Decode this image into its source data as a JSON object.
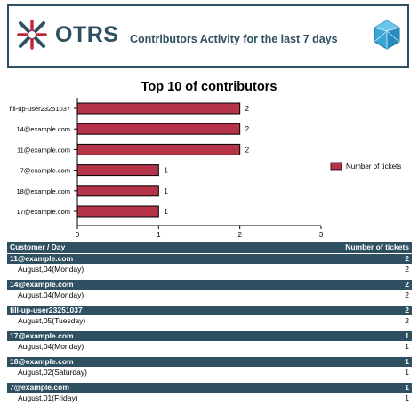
{
  "header": {
    "logo_text": "OTRS",
    "title": "Contributors Activity for the last 7 days"
  },
  "chart_data": {
    "type": "bar",
    "orientation": "horizontal",
    "title": "Top 10 of contributors",
    "categories": [
      "fill-up-user23251037",
      "14@example.com",
      "11@example.com",
      "7@example.com",
      "18@example.com",
      "17@example.com"
    ],
    "series": [
      {
        "name": "Number of tickets",
        "values": [
          2,
          2,
          2,
          1,
          1,
          1
        ],
        "color": "#b5344a"
      }
    ],
    "xlim": [
      0,
      3
    ],
    "xticks": [
      "0",
      "1",
      "2",
      "3"
    ],
    "legend_position": "right"
  },
  "table": {
    "header": {
      "left": "Customer / Day",
      "right": "Number of tickets"
    },
    "groups": [
      {
        "name": "11@example.com",
        "total": "2",
        "rows": [
          {
            "day": "August,04(Monday)",
            "count": "2"
          }
        ]
      },
      {
        "name": "14@example.com",
        "total": "2",
        "rows": [
          {
            "day": "August,04(Monday)",
            "count": "2"
          }
        ]
      },
      {
        "name": "fill-up-user23251037",
        "total": "2",
        "rows": [
          {
            "day": "August,05(Tuesday)",
            "count": "2"
          }
        ]
      },
      {
        "name": "17@example.com",
        "total": "1",
        "rows": [
          {
            "day": "August,04(Monday)",
            "count": "1"
          }
        ]
      },
      {
        "name": "18@example.com",
        "total": "1",
        "rows": [
          {
            "day": "August,02(Saturday)",
            "count": "1"
          }
        ]
      },
      {
        "name": "7@example.com",
        "total": "1",
        "rows": [
          {
            "day": "August,01(Friday)",
            "count": "1"
          }
        ]
      }
    ]
  }
}
